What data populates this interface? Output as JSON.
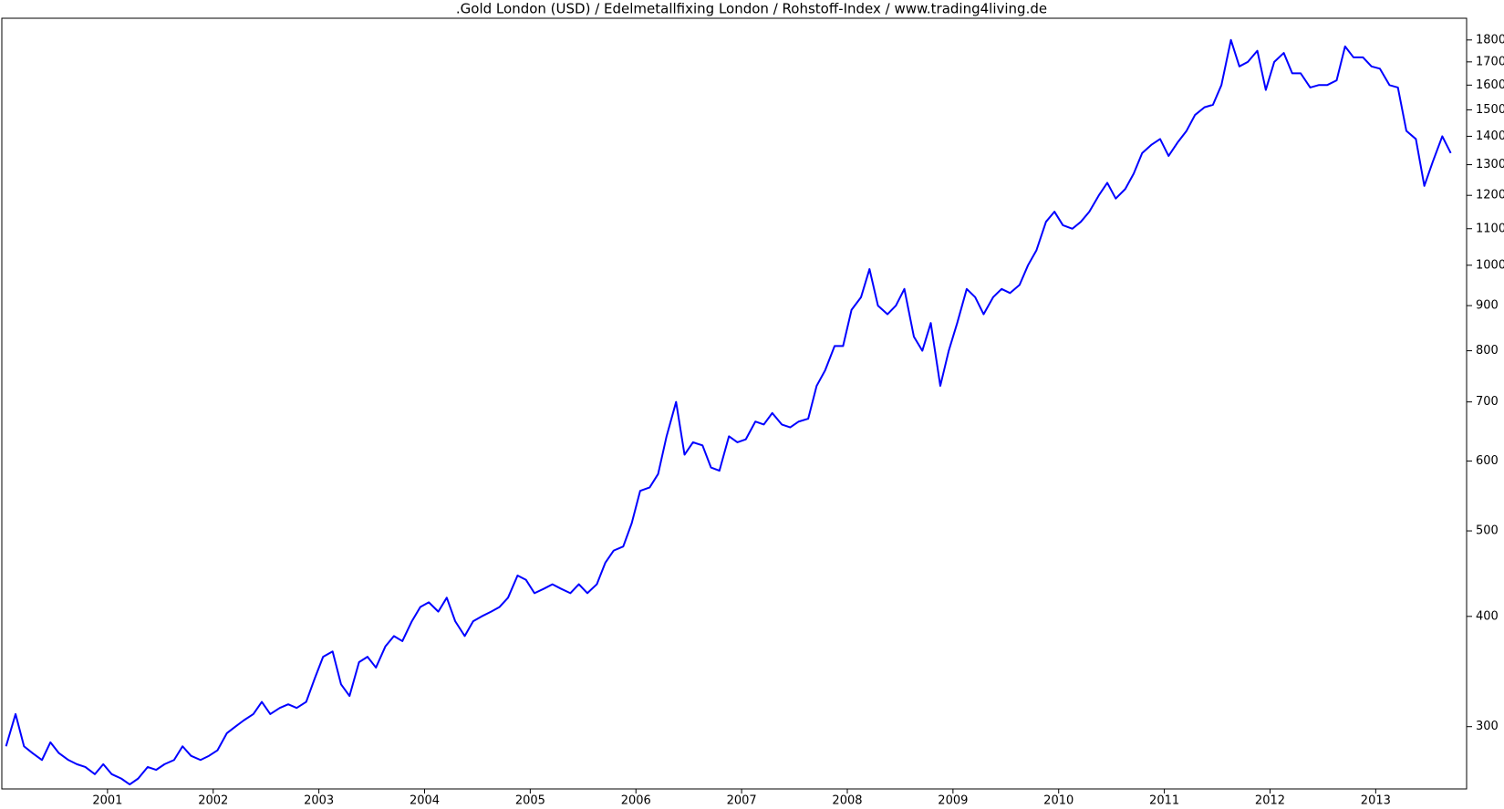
{
  "chart_data": {
    "type": "line",
    "title": ".Gold London (USD) / Edelmetallfixing London / Rohstoff-Index / www.trading4living.de",
    "color": "#0000ff",
    "log_scale": true,
    "xlim": [
      2000,
      2013.86
    ],
    "xticks": [
      2001,
      2002,
      2003,
      2004,
      2005,
      2006,
      2007,
      2008,
      2009,
      2010,
      2011,
      2012,
      2013
    ],
    "ylim": [
      255,
      1905
    ],
    "yticks": [
      300,
      400,
      500,
      600,
      700,
      800,
      900,
      1000,
      1100,
      1200,
      1300,
      1400,
      1500,
      1600,
      1700,
      1800
    ],
    "x": [
      2000.04,
      2000.13,
      2000.21,
      2000.29,
      2000.38,
      2000.46,
      2000.54,
      2000.63,
      2000.71,
      2000.79,
      2000.88,
      2000.96,
      2001.04,
      2001.13,
      2001.21,
      2001.29,
      2001.38,
      2001.46,
      2001.54,
      2001.63,
      2001.71,
      2001.79,
      2001.88,
      2001.96,
      2002.04,
      2002.13,
      2002.21,
      2002.29,
      2002.38,
      2002.46,
      2002.54,
      2002.63,
      2002.71,
      2002.79,
      2002.88,
      2002.96,
      2003.04,
      2003.13,
      2003.21,
      2003.29,
      2003.38,
      2003.46,
      2003.54,
      2003.63,
      2003.71,
      2003.79,
      2003.88,
      2003.96,
      2004.04,
      2004.13,
      2004.21,
      2004.29,
      2004.38,
      2004.46,
      2004.54,
      2004.63,
      2004.71,
      2004.79,
      2004.88,
      2004.96,
      2005.04,
      2005.13,
      2005.21,
      2005.29,
      2005.38,
      2005.46,
      2005.54,
      2005.63,
      2005.71,
      2005.79,
      2005.88,
      2005.96,
      2006.04,
      2006.13,
      2006.21,
      2006.29,
      2006.38,
      2006.46,
      2006.54,
      2006.63,
      2006.71,
      2006.79,
      2006.88,
      2006.96,
      2007.04,
      2007.13,
      2007.21,
      2007.29,
      2007.38,
      2007.46,
      2007.54,
      2007.63,
      2007.71,
      2007.79,
      2007.88,
      2007.96,
      2008.04,
      2008.13,
      2008.21,
      2008.29,
      2008.38,
      2008.46,
      2008.54,
      2008.63,
      2008.71,
      2008.79,
      2008.88,
      2008.96,
      2009.04,
      2009.13,
      2009.21,
      2009.29,
      2009.38,
      2009.46,
      2009.54,
      2009.63,
      2009.71,
      2009.79,
      2009.88,
      2009.96,
      2010.04,
      2010.13,
      2010.21,
      2010.29,
      2010.38,
      2010.46,
      2010.54,
      2010.63,
      2010.71,
      2010.79,
      2010.88,
      2010.96,
      2011.04,
      2011.13,
      2011.21,
      2011.29,
      2011.38,
      2011.46,
      2011.54,
      2011.63,
      2011.71,
      2011.79,
      2011.88,
      2011.96,
      2012.04,
      2012.13,
      2012.21,
      2012.29,
      2012.38,
      2012.46,
      2012.54,
      2012.63,
      2012.71,
      2012.79,
      2012.88,
      2012.96,
      2013.04,
      2013.13,
      2013.21,
      2013.29,
      2013.38,
      2013.46,
      2013.54,
      2013.63,
      2013.71
    ],
    "values": [
      285,
      310,
      285,
      280,
      275,
      288,
      280,
      275,
      272,
      270,
      265,
      272,
      265,
      262,
      258,
      262,
      270,
      268,
      272,
      275,
      285,
      278,
      275,
      278,
      282,
      295,
      300,
      305,
      310,
      320,
      310,
      315,
      318,
      315,
      320,
      340,
      360,
      365,
      335,
      325,
      355,
      360,
      350,
      370,
      380,
      375,
      395,
      410,
      415,
      405,
      420,
      395,
      380,
      395,
      400,
      405,
      410,
      420,
      445,
      440,
      425,
      430,
      435,
      430,
      425,
      435,
      425,
      435,
      460,
      475,
      480,
      510,
      555,
      560,
      580,
      640,
      700,
      610,
      630,
      625,
      590,
      585,
      640,
      630,
      635,
      665,
      660,
      680,
      660,
      655,
      665,
      670,
      730,
      760,
      810,
      810,
      890,
      920,
      990,
      900,
      880,
      900,
      940,
      830,
      800,
      860,
      730,
      800,
      860,
      940,
      920,
      880,
      920,
      940,
      930,
      950,
      1000,
      1040,
      1120,
      1150,
      1110,
      1100,
      1120,
      1150,
      1200,
      1240,
      1190,
      1220,
      1270,
      1340,
      1370,
      1390,
      1330,
      1380,
      1420,
      1480,
      1510,
      1520,
      1600,
      1800,
      1680,
      1700,
      1750,
      1580,
      1700,
      1740,
      1650,
      1650,
      1590,
      1600,
      1600,
      1620,
      1770,
      1720,
      1720,
      1680,
      1670,
      1600,
      1590,
      1420,
      1390,
      1230,
      1310,
      1400,
      1340
    ]
  }
}
